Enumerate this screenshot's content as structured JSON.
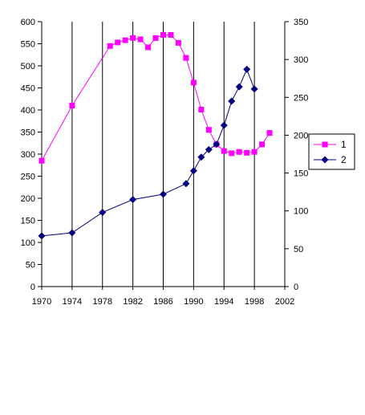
{
  "chart_data": {
    "type": "line",
    "x_ticks": [
      "1970",
      "1974",
      "1978",
      "1982",
      "1986",
      "1990",
      "1994",
      "1998",
      "2002"
    ],
    "y_left": {
      "min": 0,
      "max": 600,
      "step": 50,
      "ticks": [
        "0",
        "50",
        "100",
        "150",
        "200",
        "250",
        "300",
        "350",
        "400",
        "450",
        "500",
        "550",
        "600"
      ]
    },
    "y_right": {
      "min": 0,
      "max": 350,
      "step": 50,
      "ticks": [
        "0",
        "50",
        "100",
        "150",
        "200",
        "250",
        "300",
        "350"
      ]
    },
    "x_range": [
      1970,
      2002
    ],
    "grid": "vertical lines at each x tick",
    "legend_position": "right",
    "series": [
      {
        "name": "1",
        "axis": "left",
        "color": "#ff00ff",
        "marker": "square",
        "points": [
          [
            1970,
            285
          ],
          [
            1974,
            410
          ],
          [
            1979,
            545
          ],
          [
            1980,
            553
          ],
          [
            1981,
            558
          ],
          [
            1982,
            563
          ],
          [
            1983,
            560
          ],
          [
            1984,
            542
          ],
          [
            1985,
            563
          ],
          [
            1986,
            570
          ],
          [
            1987,
            570
          ],
          [
            1988,
            552
          ],
          [
            1989,
            518
          ],
          [
            1990,
            462
          ],
          [
            1991,
            401
          ],
          [
            1992,
            355
          ],
          [
            1993,
            322
          ],
          [
            1994,
            307
          ],
          [
            1995,
            302
          ],
          [
            1996,
            305
          ],
          [
            1997,
            303
          ],
          [
            1998,
            305
          ],
          [
            1999,
            322
          ],
          [
            2000,
            348
          ]
        ]
      },
      {
        "name": "2",
        "axis": "right",
        "color": "#000080",
        "marker": "diamond",
        "points": [
          [
            1970,
            67
          ],
          [
            1974,
            71
          ],
          [
            1978,
            98
          ],
          [
            1982,
            115
          ],
          [
            1986,
            122
          ],
          [
            1989,
            136
          ],
          [
            1990,
            153
          ],
          [
            1991,
            171
          ],
          [
            1992,
            181
          ],
          [
            1993,
            188
          ],
          [
            1994,
            213
          ],
          [
            1995,
            245
          ],
          [
            1996,
            264
          ],
          [
            1997,
            287
          ],
          [
            1998,
            261
          ]
        ]
      }
    ]
  }
}
